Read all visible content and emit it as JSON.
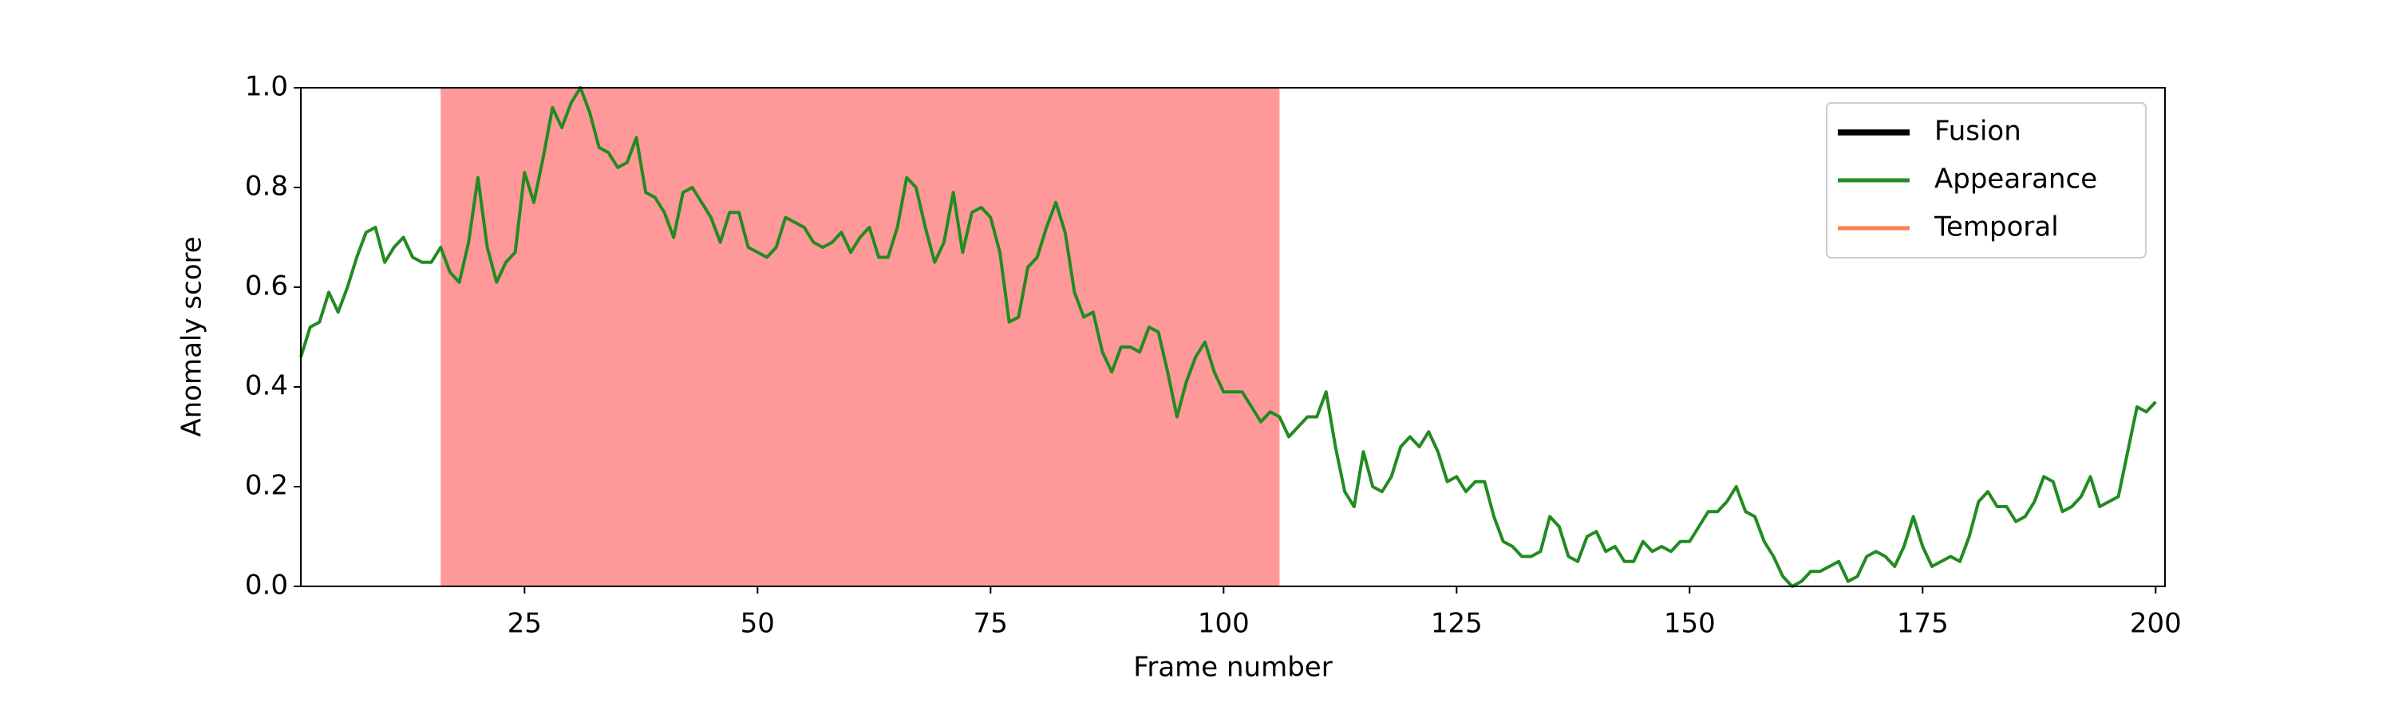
{
  "chart_data": {
    "type": "line",
    "xlabel": "Frame number",
    "ylabel": "Anomaly score",
    "xlim": [
      1,
      201
    ],
    "ylim": [
      0,
      1
    ],
    "xticks": [
      25,
      50,
      75,
      100,
      125,
      150,
      175,
      200
    ],
    "yticks": [
      {
        "value": 0,
        "label": "0.0"
      },
      0.2,
      0.4,
      0.6,
      0.8,
      {
        "value": 1,
        "label": "1.0"
      }
    ],
    "spans": [
      {
        "range": [
          16,
          106
        ],
        "color": "#ff9999"
      }
    ],
    "legend": "upper right",
    "x": [
      1,
      2,
      3,
      4,
      5,
      6,
      7,
      8,
      9,
      10,
      11,
      12,
      13,
      14,
      15,
      16,
      17,
      18,
      19,
      20,
      21,
      22,
      23,
      24,
      25,
      26,
      27,
      28,
      29,
      30,
      31,
      32,
      33,
      34,
      35,
      36,
      37,
      38,
      39,
      40,
      41,
      42,
      43,
      44,
      45,
      46,
      47,
      48,
      49,
      50,
      51,
      52,
      53,
      54,
      55,
      56,
      57,
      58,
      59,
      60,
      61,
      62,
      63,
      64,
      65,
      66,
      67,
      68,
      69,
      70,
      71,
      72,
      73,
      74,
      75,
      76,
      77,
      78,
      79,
      80,
      81,
      82,
      83,
      84,
      85,
      86,
      87,
      88,
      89,
      90,
      91,
      92,
      93,
      94,
      95,
      96,
      97,
      98,
      99,
      100,
      101,
      102,
      103,
      104,
      105,
      106,
      107,
      108,
      109,
      110,
      111,
      112,
      113,
      114,
      115,
      116,
      117,
      118,
      119,
      120,
      121,
      122,
      123,
      124,
      125,
      126,
      127,
      128,
      129,
      130,
      131,
      132,
      133,
      134,
      135,
      136,
      137,
      138,
      139,
      140,
      141,
      142,
      143,
      144,
      145,
      146,
      147,
      148,
      149,
      150,
      151,
      152,
      153,
      154,
      155,
      156,
      157,
      158,
      159,
      160,
      161,
      162,
      163,
      164,
      165,
      166,
      167,
      168,
      169,
      170,
      171,
      172,
      173,
      174,
      175,
      176,
      177,
      178,
      179,
      180,
      181,
      182,
      183,
      184,
      185,
      186,
      187,
      188,
      189,
      190,
      191,
      192,
      193,
      194,
      195,
      196,
      197,
      198,
      199,
      200
    ],
    "series": [
      {
        "name": "Fusion",
        "color": "#000000",
        "linewidth": 3
      },
      {
        "name": "Appearance",
        "color": "#228b22",
        "linewidth": 2,
        "values": [
          0.46,
          0.52,
          0.53,
          0.59,
          0.55,
          0.6,
          0.66,
          0.71,
          0.72,
          0.65,
          0.68,
          0.7,
          0.66,
          0.65,
          0.65,
          0.68,
          0.63,
          0.61,
          0.69,
          0.82,
          0.68,
          0.61,
          0.65,
          0.67,
          0.83,
          0.77,
          0.86,
          0.96,
          0.92,
          0.97,
          1.0,
          0.95,
          0.88,
          0.87,
          0.84,
          0.85,
          0.9,
          0.79,
          0.78,
          0.75,
          0.7,
          0.79,
          0.8,
          0.77,
          0.74,
          0.69,
          0.75,
          0.75,
          0.68,
          0.67,
          0.66,
          0.68,
          0.74,
          0.73,
          0.72,
          0.69,
          0.68,
          0.69,
          0.71,
          0.67,
          0.7,
          0.72,
          0.66,
          0.66,
          0.72,
          0.82,
          0.8,
          0.72,
          0.65,
          0.69,
          0.79,
          0.67,
          0.75,
          0.76,
          0.74,
          0.67,
          0.53,
          0.54,
          0.64,
          0.66,
          0.72,
          0.77,
          0.71,
          0.59,
          0.54,
          0.55,
          0.47,
          0.43,
          0.48,
          0.48,
          0.47,
          0.52,
          0.51,
          0.43,
          0.34,
          0.41,
          0.46,
          0.49,
          0.43,
          0.39,
          0.39,
          0.39,
          0.36,
          0.33,
          0.35,
          0.34,
          0.3,
          0.32,
          0.34,
          0.34,
          0.39,
          0.28,
          0.19,
          0.16,
          0.27,
          0.2,
          0.19,
          0.22,
          0.28,
          0.3,
          0.28,
          0.31,
          0.27,
          0.21,
          0.22,
          0.19,
          0.21,
          0.21,
          0.14,
          0.09,
          0.08,
          0.06,
          0.06,
          0.07,
          0.14,
          0.12,
          0.06,
          0.05,
          0.1,
          0.11,
          0.07,
          0.08,
          0.05,
          0.05,
          0.09,
          0.07,
          0.08,
          0.07,
          0.09,
          0.09,
          0.12,
          0.15,
          0.15,
          0.17,
          0.2,
          0.15,
          0.14,
          0.09,
          0.06,
          0.02,
          0.0,
          0.01,
          0.03,
          0.03,
          0.04,
          0.05,
          0.01,
          0.02,
          0.06,
          0.07,
          0.06,
          0.04,
          0.08,
          0.14,
          0.08,
          0.04,
          0.05,
          0.06,
          0.05,
          0.1,
          0.17,
          0.19,
          0.16,
          0.16,
          0.13,
          0.14,
          0.17,
          0.22,
          0.21,
          0.15,
          0.16,
          0.18,
          0.22,
          0.16,
          0.17,
          0.18,
          0.27,
          0.36,
          0.35,
          0.37
        ]
      },
      {
        "name": "Temporal",
        "color": "#ff7f50",
        "linewidth": 2
      }
    ]
  }
}
